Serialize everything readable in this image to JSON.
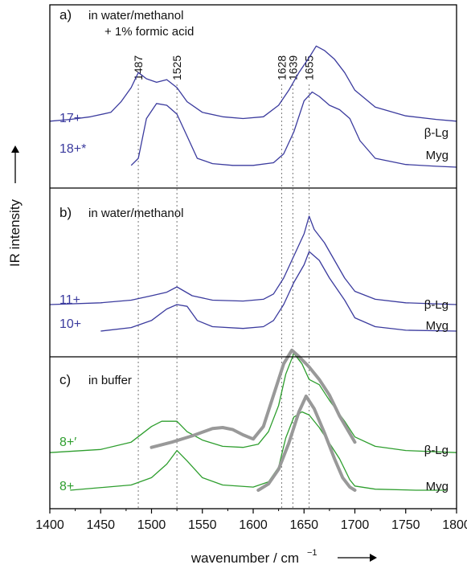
{
  "chart_data": {
    "type": "line",
    "xlabel": "wavenumber / cm",
    "xlabel_sup": "−1",
    "ylabel": "IR intensity",
    "xlim": [
      1400,
      1800
    ],
    "xticks": [
      1400,
      1450,
      1500,
      1550,
      1600,
      1650,
      1700,
      1750,
      1800
    ],
    "reference_lines": [
      {
        "label": "1487",
        "x": 1487
      },
      {
        "label": "1525",
        "x": 1525
      },
      {
        "label": "1628",
        "x": 1628
      },
      {
        "label": "1639",
        "x": 1639
      },
      {
        "label": "1655",
        "x": 1655
      }
    ],
    "panels": [
      {
        "id": "a",
        "letter": "a)",
        "label": "in water/methanol",
        "label2": "+ 1% formic acid",
        "series": [
          {
            "charge": "17+",
            "protein": "β-Lg",
            "color": "#3b3b9e",
            "offset": 0.52,
            "x": [
              1400,
              1420,
              1440,
              1460,
              1470,
              1480,
              1487,
              1495,
              1505,
              1515,
              1525,
              1535,
              1550,
              1570,
              1590,
              1610,
              1625,
              1635,
              1645,
              1655,
              1662,
              1670,
              1680,
              1690,
              1700,
              1720,
              1750,
              1780,
              1800
            ],
            "y": [
              0.0,
              0.02,
              0.05,
              0.1,
              0.22,
              0.38,
              0.55,
              0.48,
              0.44,
              0.47,
              0.38,
              0.22,
              0.1,
              0.05,
              0.03,
              0.05,
              0.18,
              0.35,
              0.55,
              0.72,
              0.85,
              0.8,
              0.7,
              0.55,
              0.35,
              0.16,
              0.06,
              0.02,
              0.0
            ]
          },
          {
            "charge": "18+*",
            "protein": "Myg",
            "color": "#3b3b9e",
            "offset": 0.0,
            "x": [
              1480,
              1487,
              1495,
              1505,
              1515,
              1525,
              1535,
              1545,
              1560,
              1580,
              1600,
              1620,
              1630,
              1640,
              1650,
              1658,
              1665,
              1675,
              1685,
              1695,
              1705,
              1720,
              1750,
              1780,
              1800
            ],
            "y": [
              0.02,
              0.1,
              0.55,
              0.72,
              0.7,
              0.6,
              0.35,
              0.1,
              0.04,
              0.02,
              0.02,
              0.05,
              0.15,
              0.4,
              0.75,
              0.85,
              0.8,
              0.7,
              0.65,
              0.55,
              0.3,
              0.1,
              0.03,
              0.01,
              0.0
            ]
          }
        ]
      },
      {
        "id": "b",
        "letter": "b)",
        "label": "in water/methanol",
        "label2": "",
        "series": [
          {
            "charge": "11+",
            "protein": "β-Lg",
            "color": "#3b3b9e",
            "offset": 0.3,
            "x": [
              1400,
              1450,
              1480,
              1500,
              1515,
              1525,
              1540,
              1560,
              1590,
              1610,
              1620,
              1630,
              1640,
              1650,
              1655,
              1660,
              1670,
              1680,
              1690,
              1700,
              1720,
              1750,
              1800
            ],
            "y": [
              0.0,
              0.02,
              0.05,
              0.1,
              0.14,
              0.2,
              0.1,
              0.05,
              0.04,
              0.06,
              0.12,
              0.3,
              0.55,
              0.8,
              1.0,
              0.85,
              0.7,
              0.5,
              0.3,
              0.15,
              0.06,
              0.02,
              0.0
            ]
          },
          {
            "charge": "10+",
            "protein": "Myg",
            "color": "#3b3b9e",
            "offset": 0.0,
            "x": [
              1450,
              1480,
              1500,
              1515,
              1525,
              1535,
              1545,
              1560,
              1590,
              1610,
              1620,
              1630,
              1640,
              1650,
              1655,
              1665,
              1675,
              1690,
              1700,
              1720,
              1750,
              1800
            ],
            "y": [
              0.0,
              0.04,
              0.12,
              0.25,
              0.3,
              0.28,
              0.12,
              0.05,
              0.03,
              0.05,
              0.12,
              0.3,
              0.55,
              0.75,
              0.9,
              0.8,
              0.6,
              0.35,
              0.15,
              0.05,
              0.01,
              0.0
            ]
          }
        ]
      },
      {
        "id": "c",
        "letter": "c)",
        "label": "in buffer",
        "label2": "",
        "series": [
          {
            "charge": "8+′",
            "protein": "β-Lg",
            "color": "#2e9e2e",
            "offset": 0.36,
            "x": [
              1400,
              1450,
              1480,
              1500,
              1510,
              1525,
              1535,
              1550,
              1570,
              1590,
              1605,
              1615,
              1625,
              1632,
              1640,
              1648,
              1655,
              1665,
              1675,
              1690,
              1700,
              1720,
              1750,
              1800
            ],
            "y": [
              0.0,
              0.03,
              0.1,
              0.25,
              0.3,
              0.3,
              0.2,
              0.12,
              0.06,
              0.05,
              0.08,
              0.2,
              0.45,
              0.75,
              0.95,
              0.85,
              0.7,
              0.65,
              0.5,
              0.3,
              0.15,
              0.06,
              0.02,
              0.0
            ]
          },
          {
            "charge": "8+",
            "protein": "Myg",
            "color": "#2e9e2e",
            "offset": 0.0,
            "x": [
              1420,
              1480,
              1500,
              1515,
              1525,
              1535,
              1550,
              1570,
              1600,
              1615,
              1625,
              1632,
              1640,
              1648,
              1655,
              1665,
              1675,
              1685,
              1695,
              1700,
              1720,
              1760,
              1790
            ],
            "y": [
              0.0,
              0.05,
              0.12,
              0.25,
              0.38,
              0.28,
              0.12,
              0.05,
              0.03,
              0.08,
              0.22,
              0.5,
              0.7,
              0.75,
              0.72,
              0.6,
              0.45,
              0.3,
              0.1,
              0.04,
              0.01,
              0.0,
              0.0
            ]
          }
        ],
        "fits": [
          {
            "series": "β-Lg",
            "color": "#999999",
            "offset": 0.36,
            "x": [
              1500,
              1520,
              1540,
              1560,
              1570,
              1580,
              1590,
              1600,
              1610,
              1620,
              1630,
              1638,
              1645,
              1655,
              1665,
              1675,
              1685,
              1700
            ],
            "y": [
              0.05,
              0.1,
              0.16,
              0.23,
              0.24,
              0.22,
              0.17,
              0.13,
              0.25,
              0.55,
              0.85,
              0.98,
              0.92,
              0.82,
              0.7,
              0.55,
              0.35,
              0.1
            ]
          },
          {
            "series": "Myg",
            "color": "#999999",
            "offset": 0.0,
            "x": [
              1605,
              1615,
              1625,
              1635,
              1645,
              1652,
              1660,
              1670,
              1680,
              1688,
              1695,
              1700
            ],
            "y": [
              0.0,
              0.06,
              0.2,
              0.45,
              0.75,
              0.9,
              0.78,
              0.55,
              0.3,
              0.12,
              0.03,
              0.0
            ]
          }
        ]
      }
    ]
  }
}
